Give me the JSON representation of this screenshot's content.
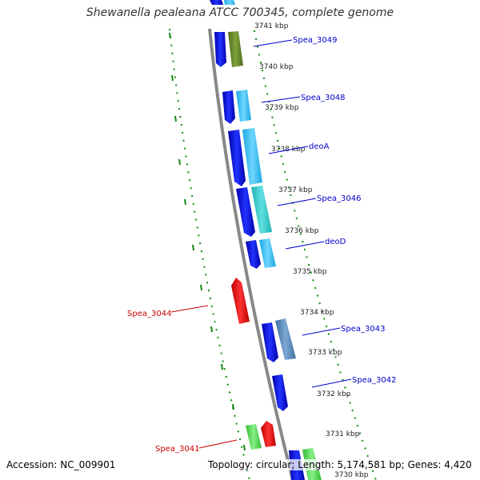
{
  "title": "Shewanella pealeana ATCC 700345, complete genome",
  "accession": "Accession: NC_009901",
  "topology": "Topology: circular; Length: 5,174,581 bp; Genes: 4,420",
  "colors": {
    "forward_label": "#0000cc",
    "reverse_label": "#cc0000",
    "tick": "#118811",
    "backbone": "#888888"
  },
  "kbp_labels": [
    "3741 kbp",
    "3740 kbp",
    "3739 kbp",
    "3738 kbp",
    "3737 kbp",
    "3736 kbp",
    "3735 kbp",
    "3734 kbp",
    "3733 kbp",
    "3732 kbp",
    "3731 kbp",
    "3730 kbp"
  ],
  "forward_genes": [
    "Spea_3049",
    "Spea_3048",
    "deoA",
    "Spea_3046",
    "deoD",
    "Spea_3043",
    "Spea_3042"
  ],
  "reverse_genes": [
    "Spea_3044",
    "Spea_3041"
  ]
}
